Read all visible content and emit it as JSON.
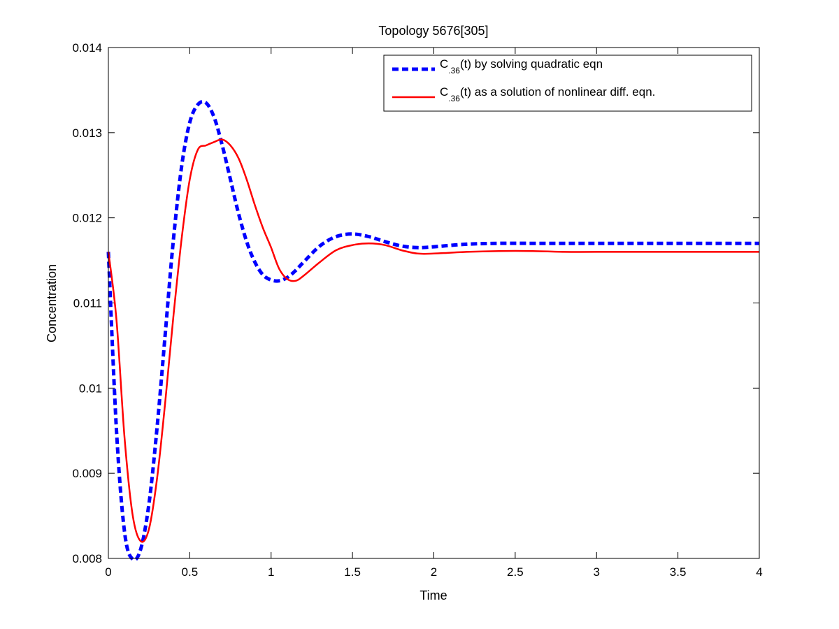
{
  "chart_data": {
    "type": "line",
    "title": "Topology 5676[305]",
    "xlabel": "Time",
    "ylabel": "Concentration",
    "xlim": [
      0,
      4
    ],
    "ylim": [
      0.008,
      0.014
    ],
    "x_ticks": [
      "0",
      "0.5",
      "1",
      "1.5",
      "2",
      "2.5",
      "3",
      "3.5",
      "4"
    ],
    "y_ticks": [
      "0.008",
      "0.009",
      "0.01",
      "0.011",
      "0.012",
      "0.013",
      "0.014"
    ],
    "grid": false,
    "legend_position": "top-right",
    "series": [
      {
        "legend_prefix": "C",
        "legend_sub": ".36",
        "legend_suffix": "(t) by solving quadratic eqn",
        "color": "#0000ff",
        "style": "dashed",
        "x": [
          0,
          0.05,
          0.1,
          0.15,
          0.2,
          0.25,
          0.3,
          0.35,
          0.4,
          0.45,
          0.5,
          0.55,
          0.6,
          0.65,
          0.7,
          0.75,
          0.8,
          0.85,
          0.9,
          0.95,
          1.0,
          1.05,
          1.1,
          1.15,
          1.2,
          1.3,
          1.4,
          1.5,
          1.6,
          1.7,
          1.8,
          1.9,
          2.0,
          2.2,
          2.4,
          2.6,
          2.8,
          3.0,
          3.5,
          4.0
        ],
        "y": [
          0.0116,
          0.0095,
          0.0083,
          0.00799,
          0.00812,
          0.00865,
          0.00955,
          0.01065,
          0.01175,
          0.0126,
          0.01312,
          0.01333,
          0.01335,
          0.01318,
          0.01285,
          0.01245,
          0.01205,
          0.01172,
          0.01148,
          0.01133,
          0.01127,
          0.01126,
          0.0113,
          0.01138,
          0.01148,
          0.01167,
          0.01178,
          0.01181,
          0.01178,
          0.01172,
          0.01167,
          0.01165,
          0.01166,
          0.01169,
          0.0117,
          0.0117,
          0.0117,
          0.0117,
          0.0117,
          0.0117
        ]
      },
      {
        "legend_prefix": "C",
        "legend_sub": ".36",
        "legend_suffix": "(t) as a solution of nonlinear diff. eqn.",
        "color": "#ff0000",
        "style": "solid",
        "x": [
          0,
          0.05,
          0.1,
          0.15,
          0.2,
          0.25,
          0.3,
          0.35,
          0.4,
          0.45,
          0.5,
          0.55,
          0.6,
          0.65,
          0.7,
          0.75,
          0.8,
          0.85,
          0.9,
          0.95,
          1.0,
          1.05,
          1.1,
          1.15,
          1.2,
          1.3,
          1.4,
          1.5,
          1.6,
          1.7,
          1.8,
          1.9,
          2.0,
          2.2,
          2.4,
          2.6,
          2.8,
          3.0,
          3.5,
          4.0
        ],
        "y": [
          0.0116,
          0.0108,
          0.0094,
          0.0085,
          0.0082,
          0.00835,
          0.00895,
          0.00985,
          0.01085,
          0.01175,
          0.01245,
          0.0128,
          0.01285,
          0.01289,
          0.01292,
          0.01285,
          0.0127,
          0.01245,
          0.01215,
          0.01188,
          0.01165,
          0.0114,
          0.01128,
          0.01126,
          0.01132,
          0.01148,
          0.01162,
          0.01168,
          0.0117,
          0.01168,
          0.01162,
          0.01158,
          0.01158,
          0.0116,
          0.01161,
          0.01161,
          0.0116,
          0.0116,
          0.0116,
          0.0116
        ]
      }
    ]
  }
}
